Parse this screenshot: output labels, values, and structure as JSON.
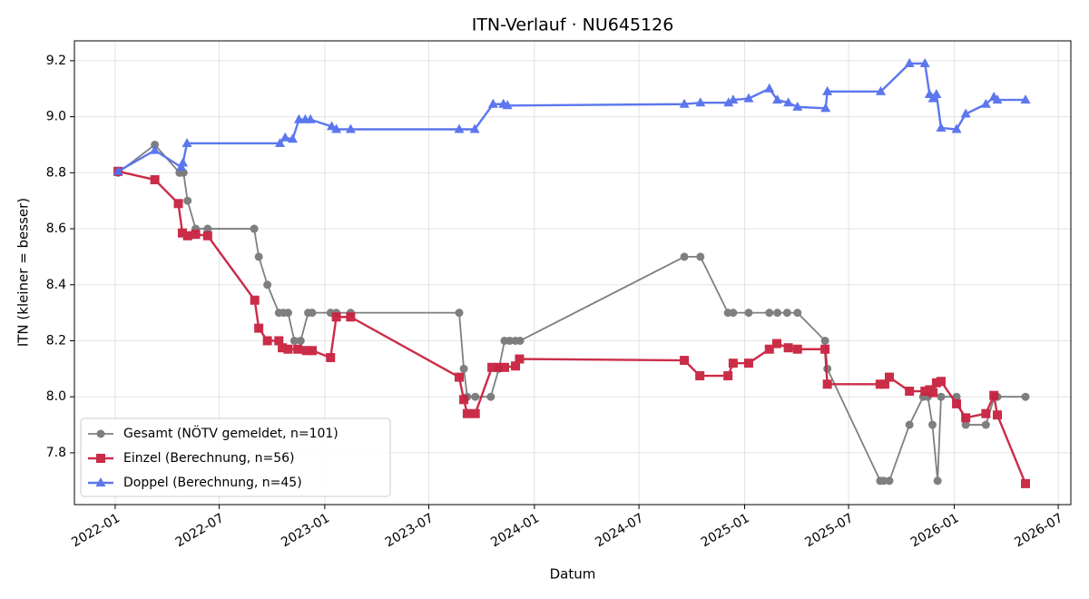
{
  "chart_data": {
    "type": "line",
    "title": "ITN-Verlauf · NU645126",
    "xlabel": "Datum",
    "ylabel": "ITN  (kleiner = besser)",
    "xlim": [
      "2021-10-22",
      "2026-07-23"
    ],
    "xticks": [
      "2022-01",
      "2022-07",
      "2023-01",
      "2023-07",
      "2024-01",
      "2024-07",
      "2025-01",
      "2025-07",
      "2026-01",
      "2026-07"
    ],
    "ylim": [
      7.615,
      9.271
    ],
    "yticks": [
      7.8,
      {
        "value": 8,
        "label": "8.0"
      },
      8.2,
      8.4,
      8.6,
      8.8,
      {
        "value": 9,
        "label": "9.0"
      },
      9.2
    ],
    "grid": true,
    "legend": "lower left",
    "series": [
      {
        "name": "Gesamt (NÖTV gemeldet, n=101)",
        "color": "#555555",
        "marker": "circle",
        "x": [
          "2022-01-06",
          "2022-03-11",
          "2022-04-23",
          "2022-04-30",
          "2022-05-07",
          "2022-05-21",
          "2022-06-11",
          "2022-08-31",
          "2022-09-08",
          "2022-09-23",
          "2022-10-13",
          "2022-10-21",
          "2022-10-29",
          "2022-11-09",
          "2022-11-20",
          "2022-12-03",
          "2022-12-10",
          "2023-01-11",
          "2023-01-21",
          "2023-02-15",
          "2023-08-23",
          "2023-08-31",
          "2023-09-06",
          "2023-09-20",
          "2023-10-17",
          "2023-10-31",
          "2023-11-10",
          "2023-11-19",
          "2023-11-29",
          "2023-12-07",
          "2024-09-18",
          "2024-10-16",
          "2024-12-03",
          "2024-12-12",
          "2025-01-08",
          "2025-02-13",
          "2025-02-27",
          "2025-03-16",
          "2025-04-03",
          "2025-05-21",
          "2025-05-25",
          "2025-08-25",
          "2025-08-31",
          "2025-09-10",
          "2025-10-15",
          "2025-11-08",
          "2025-11-16",
          "2025-11-24",
          "2025-12-03",
          "2025-12-09",
          "2026-01-05",
          "2026-01-21",
          "2026-02-25",
          "2026-03-12",
          "2026-03-17",
          "2026-05-05"
        ],
        "values": [
          8.8,
          8.9,
          8.8,
          8.8,
          8.7,
          8.6,
          8.6,
          8.6,
          8.5,
          8.4,
          8.3,
          8.3,
          8.3,
          8.2,
          8.2,
          8.3,
          8.3,
          8.3,
          8.3,
          8.3,
          8.3,
          8.1,
          8.0,
          8.0,
          8.0,
          8.1,
          8.2,
          8.2,
          8.2,
          8.2,
          8.5,
          8.5,
          8.3,
          8.3,
          8.3,
          8.3,
          8.3,
          8.3,
          8.3,
          8.2,
          8.1,
          7.7,
          7.7,
          7.7,
          7.9,
          8.0,
          8.0,
          7.9,
          7.7,
          8.0,
          8.0,
          7.9,
          7.9,
          8.0,
          8.0,
          8.0
        ]
      },
      {
        "name": "Einzel (Berechnung, n=56)",
        "color": "#c9213f",
        "marker": "square",
        "x": [
          "2022-01-06",
          "2022-03-11",
          "2022-04-21",
          "2022-04-28",
          "2022-05-07",
          "2022-05-21",
          "2022-06-11",
          "2022-09-01",
          "2022-09-08",
          "2022-09-23",
          "2022-10-13",
          "2022-10-19",
          "2022-10-29",
          "2022-11-15",
          "2022-11-30",
          "2022-12-10",
          "2023-01-11",
          "2023-01-21",
          "2023-02-15",
          "2023-08-23",
          "2023-08-31",
          "2023-09-06",
          "2023-09-20",
          "2023-10-19",
          "2023-10-30",
          "2023-11-10",
          "2023-11-29",
          "2023-12-06",
          "2024-09-18",
          "2024-10-15",
          "2024-12-03",
          "2024-12-12",
          "2025-01-08",
          "2025-02-13",
          "2025-02-26",
          "2025-03-18",
          "2025-04-03",
          "2025-05-21",
          "2025-05-25",
          "2025-08-25",
          "2025-09-02",
          "2025-09-10",
          "2025-10-15",
          "2025-11-11",
          "2025-11-19",
          "2025-11-25",
          "2025-12-01",
          "2025-12-09",
          "2026-01-05",
          "2026-01-21",
          "2026-02-25",
          "2026-03-11",
          "2026-03-17",
          "2026-05-05"
        ],
        "values": [
          8.805,
          8.775,
          8.69,
          8.585,
          8.575,
          8.58,
          8.575,
          8.345,
          8.245,
          8.2,
          8.2,
          8.175,
          8.17,
          8.17,
          8.165,
          8.165,
          8.14,
          8.285,
          8.285,
          8.07,
          7.99,
          7.94,
          7.94,
          8.105,
          8.105,
          8.105,
          8.11,
          8.135,
          8.13,
          8.075,
          8.075,
          8.12,
          8.12,
          8.17,
          8.19,
          8.175,
          8.17,
          8.17,
          8.045,
          8.045,
          8.045,
          8.07,
          8.02,
          8.02,
          8.025,
          8.015,
          8.05,
          8.055,
          7.975,
          7.925,
          7.94,
          8.005,
          7.935,
          7.69
        ]
      },
      {
        "name": "Doppel (Berechnung, n=45)",
        "color": "#5470ee",
        "marker": "triangle",
        "x": [
          "2022-01-06",
          "2022-03-11",
          "2022-04-26",
          "2022-04-29",
          "2022-05-06",
          "2022-10-15",
          "2022-10-24",
          "2022-11-06",
          "2022-11-17",
          "2022-11-28",
          "2022-12-07",
          "2023-01-13",
          "2023-01-21",
          "2023-02-15",
          "2023-08-23",
          "2023-09-19",
          "2023-10-21",
          "2023-11-08",
          "2023-11-15",
          "2024-09-18",
          "2024-10-16",
          "2024-12-04",
          "2024-12-12",
          "2025-01-08",
          "2025-02-13",
          "2025-02-27",
          "2025-03-18",
          "2025-04-03",
          "2025-05-22",
          "2025-05-25",
          "2025-08-26",
          "2025-10-15",
          "2025-11-11",
          "2025-11-19",
          "2025-11-25",
          "2025-12-01",
          "2025-12-09",
          "2026-01-05",
          "2026-01-21",
          "2026-02-25",
          "2026-03-11",
          "2026-03-17",
          "2026-05-05"
        ],
        "values": [
          8.805,
          8.88,
          8.82,
          8.835,
          8.905,
          8.905,
          8.925,
          8.92,
          8.99,
          8.99,
          8.99,
          8.965,
          8.955,
          8.955,
          8.955,
          8.955,
          9.045,
          9.045,
          9.04,
          9.045,
          9.05,
          9.05,
          9.06,
          9.065,
          9.1,
          9.06,
          9.05,
          9.035,
          9.03,
          9.09,
          9.09,
          9.19,
          9.19,
          9.08,
          9.065,
          9.08,
          8.96,
          8.955,
          9.01,
          9.045,
          9.07,
          9.06,
          9.06
        ]
      }
    ]
  }
}
